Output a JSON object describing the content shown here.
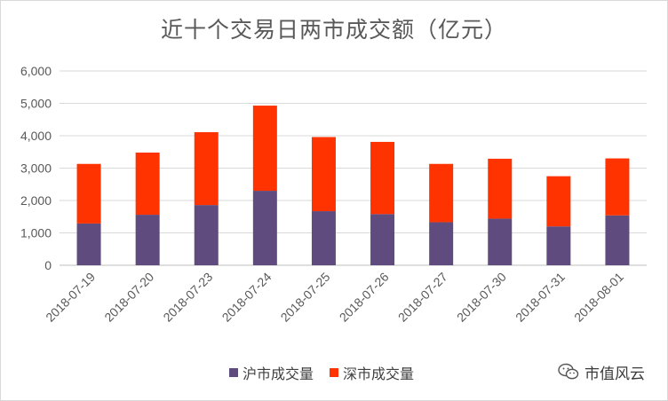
{
  "chart_data": {
    "type": "bar",
    "stacked": true,
    "title": "近十个交易日两市成交额（亿元）",
    "categories": [
      "2018-07-19",
      "2018-07-20",
      "2018-07-23",
      "2018-07-24",
      "2018-07-25",
      "2018-07-26",
      "2018-07-27",
      "2018-07-30",
      "2018-07-31",
      "2018-08-01"
    ],
    "series": [
      {
        "name": "沪市成交量",
        "color": "#5f4b7d",
        "values": [
          1290,
          1560,
          1860,
          2300,
          1670,
          1580,
          1330,
          1440,
          1200,
          1540
        ]
      },
      {
        "name": "深市成交量",
        "color": "#ff3300",
        "values": [
          1840,
          1920,
          2250,
          2630,
          2290,
          2230,
          1800,
          1850,
          1550,
          1760
        ]
      }
    ],
    "ylim": [
      0,
      6000
    ],
    "yticks": [
      0,
      1000,
      2000,
      3000,
      4000,
      5000,
      6000
    ],
    "ytick_labels": [
      "0",
      "1,000",
      "2,000",
      "3,000",
      "4,000",
      "5,000",
      "6,000"
    ],
    "grid": true,
    "legend_position": "bottom"
  },
  "watermark": {
    "text": "市值风云",
    "icon": "wechat-icon"
  }
}
